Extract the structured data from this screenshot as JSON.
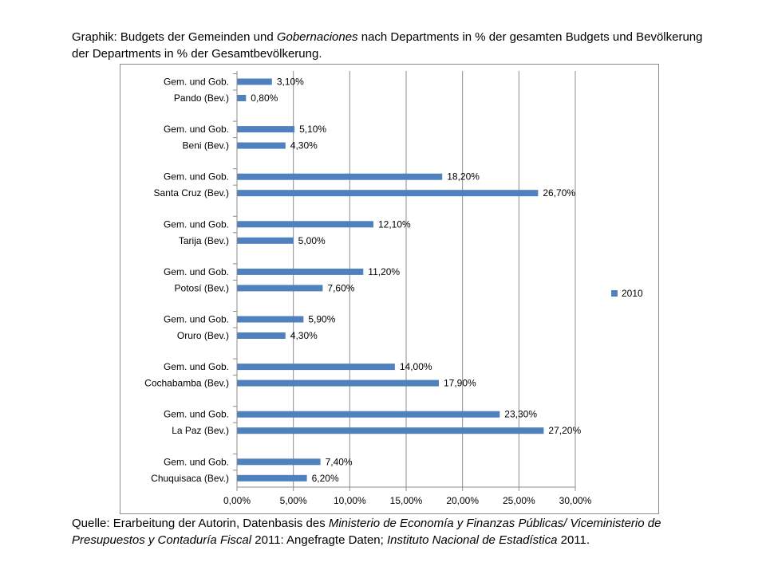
{
  "title_parts": [
    {
      "text": "Graphik: Budgets der Gemeinden und ",
      "italic": false
    },
    {
      "text": "Gobernaciones",
      "italic": true
    },
    {
      "text": " nach Departments in % der gesamten Budgets und Bevölkerung der Departments in % der Gesamtbevölkerung.",
      "italic": false
    }
  ],
  "source_parts": [
    {
      "text": "Quelle: Erarbeitung der Autorin, Datenbasis des ",
      "italic": false
    },
    {
      "text": "Ministerio de Economía y Finanzas Públicas/ Viceministerio de Presupuestos y Contaduría Fiscal",
      "italic": true
    },
    {
      "text": " 2011: Angefragte Daten; ",
      "italic": false
    },
    {
      "text": "Instituto Nacional de Estadística",
      "italic": true
    },
    {
      "text": " 2011.",
      "italic": false
    }
  ],
  "chart_data": {
    "type": "bar",
    "orientation": "horizontal",
    "categories": [
      "Gem. und Gob.",
      "Pando (Bev.)",
      "Gem. und Gob.",
      "Beni (Bev.)",
      "Gem. und Gob.",
      "Santa Cruz (Bev.)",
      "Gem. und Gob.",
      "Tarija (Bev.)",
      "Gem. und Gob.",
      "Potosí (Bev.)",
      "Gem. und Gob.",
      "Oruro (Bev.)",
      "Gem. und Gob.",
      "Cochabamba (Bev.)",
      "Gem. und Gob.",
      "La Paz (Bev.)",
      "Gem. und Gob.",
      "Chuquisaca (Bev.)"
    ],
    "series": [
      {
        "name": "2010",
        "values": [
          3.1,
          0.8,
          5.1,
          4.3,
          18.2,
          26.7,
          12.1,
          5.0,
          11.2,
          7.6,
          5.9,
          4.3,
          14.0,
          17.9,
          23.3,
          27.2,
          7.4,
          6.2
        ],
        "labels": [
          "3,10%",
          "0,80%",
          "5,10%",
          "4,30%",
          "18,20%",
          "26,70%",
          "12,10%",
          "5,00%",
          "11,20%",
          "7,60%",
          "5,90%",
          "4,30%",
          "14,00%",
          "17,90%",
          "23,30%",
          "27,20%",
          "7,40%",
          "6,20%"
        ]
      }
    ],
    "xlim": [
      0,
      30
    ],
    "xticks": [
      0,
      5,
      10,
      15,
      20,
      25,
      30
    ],
    "xtick_labels": [
      "0,00%",
      "5,00%",
      "10,00%",
      "15,00%",
      "20,00%",
      "25,00%",
      "30,00%"
    ],
    "grid": "vertical",
    "legend_position": "right",
    "color": "#4f81bd"
  }
}
